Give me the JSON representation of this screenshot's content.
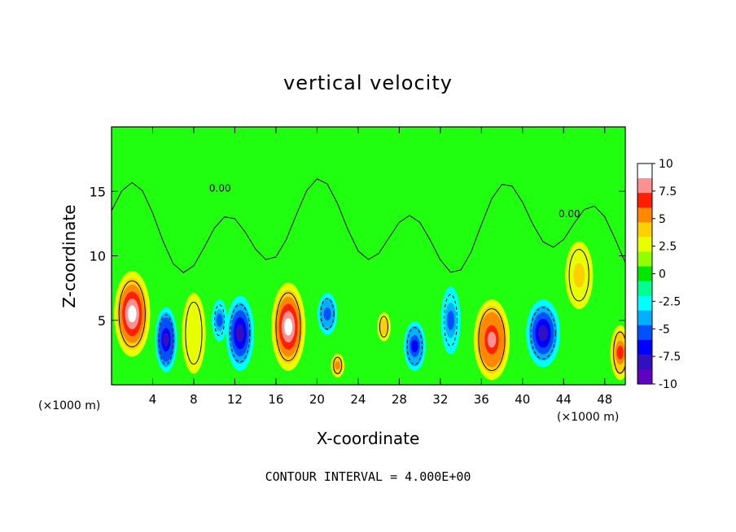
{
  "chart_data": {
    "type": "heatmap",
    "title": "vertical velocity",
    "xlabel": "X-coordinate",
    "ylabel": "Z-coordinate",
    "x_unit_left": "(×1000 m)",
    "x_unit_right": "(×1000 m)",
    "xlim": [
      0,
      50
    ],
    "ylim": [
      0,
      20
    ],
    "x_ticks": [
      "4",
      "8",
      "12",
      "16",
      "20",
      "24",
      "28",
      "32",
      "36",
      "40",
      "44",
      "48"
    ],
    "x_tick_values": [
      4,
      8,
      12,
      16,
      20,
      24,
      28,
      32,
      36,
      40,
      44,
      48
    ],
    "y_ticks": [
      "5",
      "10",
      "15"
    ],
    "y_tick_values": [
      5,
      10,
      15
    ],
    "colorbar": {
      "labels": [
        "10",
        "7.5",
        "5",
        "2.5",
        "0",
        "-2.5",
        "-5",
        "-7.5",
        "-10"
      ],
      "values": [
        10,
        7.5,
        5,
        2.5,
        0,
        -2.5,
        -5,
        -7.5,
        -10
      ],
      "colors": [
        "#ffffff",
        "#ff9090",
        "#ff2000",
        "#ff8800",
        "#ffd000",
        "#e8ff00",
        "#90ff00",
        "#00e800",
        "#00ff90",
        "#00ffff",
        "#00b0ff",
        "#0050ff",
        "#0000ff",
        "#3010c0",
        "#6000c0"
      ]
    },
    "contour_labels": [
      "0.00",
      "0.00"
    ],
    "background_color": "#20ff10",
    "features": [
      {
        "x": 2.0,
        "z": 5.5,
        "rx": 1.6,
        "rz": 3.2,
        "w": 10
      },
      {
        "x": 5.3,
        "z": 3.5,
        "rx": 0.9,
        "rz": 2.4,
        "w": -9
      },
      {
        "x": 8.0,
        "z": 4.0,
        "rx": 1.0,
        "rz": 3.0,
        "w": 2.5
      },
      {
        "x": 10.5,
        "z": 5.0,
        "rx": 0.6,
        "rz": 1.5,
        "w": -5
      },
      {
        "x": 12.5,
        "z": 4.0,
        "rx": 1.2,
        "rz": 2.8,
        "w": -8
      },
      {
        "x": 17.2,
        "z": 4.5,
        "rx": 1.5,
        "rz": 3.3,
        "w": 10
      },
      {
        "x": 21.0,
        "z": 5.5,
        "rx": 0.8,
        "rz": 1.5,
        "w": -6
      },
      {
        "x": 22.0,
        "z": 1.5,
        "rx": 0.5,
        "rz": 0.8,
        "w": 6
      },
      {
        "x": 26.5,
        "z": 4.5,
        "rx": 0.5,
        "rz": 1.0,
        "w": 5
      },
      {
        "x": 29.5,
        "z": 3.0,
        "rx": 0.9,
        "rz": 1.8,
        "w": -7
      },
      {
        "x": 33.0,
        "z": 5.0,
        "rx": 0.8,
        "rz": 2.5,
        "w": -5
      },
      {
        "x": 37.0,
        "z": 3.5,
        "rx": 1.6,
        "rz": 3.0,
        "w": 9
      },
      {
        "x": 42.0,
        "z": 4.0,
        "rx": 1.5,
        "rz": 2.5,
        "w": -8
      },
      {
        "x": 45.5,
        "z": 8.5,
        "rx": 1.2,
        "rz": 2.5,
        "w": 4
      },
      {
        "x": 49.5,
        "z": 2.5,
        "rx": 0.8,
        "rz": 2.0,
        "w": 7
      }
    ]
  },
  "footer": "CONTOUR INTERVAL = 4.000E+00"
}
